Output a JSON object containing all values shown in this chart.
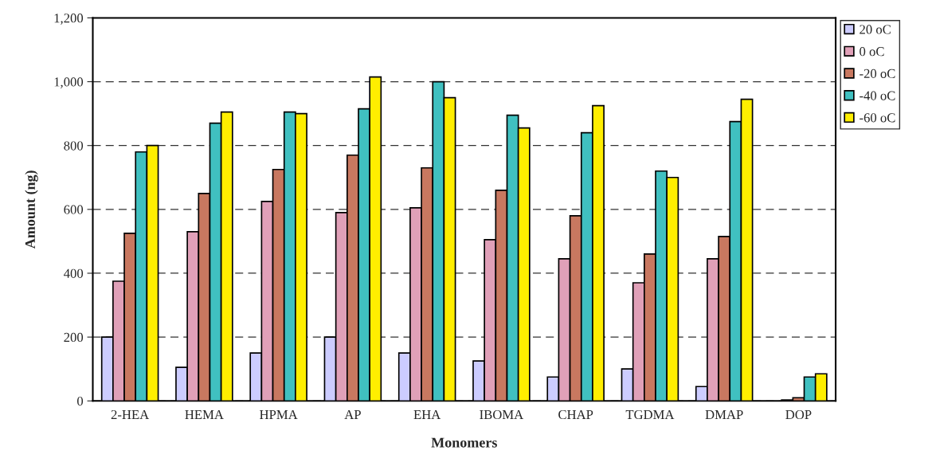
{
  "chart_data": {
    "type": "bar",
    "xlabel": "Monomers",
    "ylabel": "Amount (ng)",
    "categories": [
      "2-HEA",
      "HEMA",
      "HPMA",
      "AP",
      "EHA",
      "IBOMA",
      "CHAP",
      "TGDMA",
      "DMAP",
      "DOP"
    ],
    "series": [
      {
        "name": "20 oC",
        "color": "#ccccff",
        "values": [
          200,
          105,
          150,
          200,
          150,
          125,
          75,
          100,
          45,
          null
        ]
      },
      {
        "name": "0 oC",
        "color": "#e0a0b8",
        "values": [
          375,
          530,
          625,
          590,
          605,
          505,
          445,
          370,
          445,
          3
        ]
      },
      {
        "name": "-20 oC",
        "color": "#c87860",
        "values": [
          525,
          650,
          725,
          770,
          730,
          660,
          580,
          460,
          515,
          10
        ]
      },
      {
        "name": "-40 oC",
        "color": "#40c0c0",
        "values": [
          780,
          870,
          905,
          915,
          1000,
          895,
          840,
          720,
          875,
          75
        ]
      },
      {
        "name": "-60 oC",
        "color": "#ffee00",
        "values": [
          800,
          905,
          900,
          1015,
          950,
          855,
          925,
          700,
          945,
          85
        ]
      }
    ],
    "ylim": [
      0,
      1200
    ],
    "yticks": [
      0,
      200,
      400,
      600,
      800,
      {
        "value": 1000,
        "label": "1,000"
      },
      {
        "value": 1200,
        "label": "1,200"
      }
    ],
    "grid": "y",
    "legend": "top right"
  }
}
